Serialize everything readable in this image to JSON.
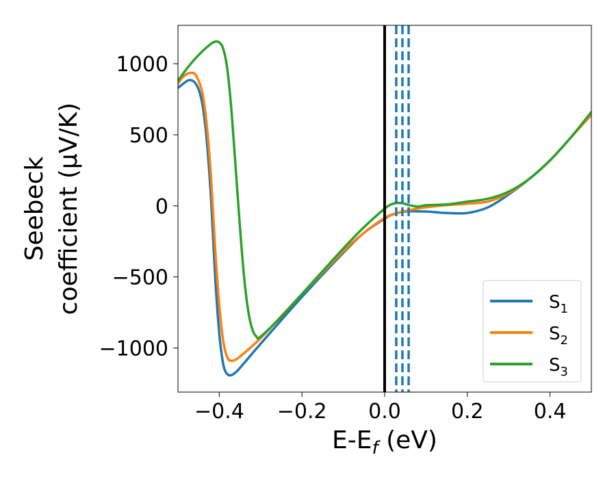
{
  "chart_data": {
    "type": "line",
    "xlabel": "E-E",
    "xlabel_sub": "f",
    "xlabel_unit": " (eV)",
    "ylabel_line1": "Seebeck",
    "ylabel_line2": "coefficient  (μV/K)",
    "xlim": [
      -0.5,
      0.5
    ],
    "ylim": [
      -1310,
      1270
    ],
    "xticks": [
      {
        "value": -0.4,
        "label": "−0.4"
      },
      {
        "value": -0.2,
        "label": "−0.2"
      },
      {
        "value": 0.0,
        "label": "0.0"
      },
      {
        "value": 0.2,
        "label": "0.2"
      },
      {
        "value": 0.4,
        "label": "0.4"
      }
    ],
    "yticks": [
      {
        "value": -1000,
        "label": "−1000"
      },
      {
        "value": -500,
        "label": "−500"
      },
      {
        "value": 0,
        "label": "0"
      },
      {
        "value": 500,
        "label": "500"
      },
      {
        "value": 1000,
        "label": "1000"
      }
    ],
    "grid": false,
    "legend_position": "lower-right",
    "series": [
      {
        "name": "S",
        "sub": "1",
        "color": "#1f77b4",
        "x": [
          -0.5,
          -0.48,
          -0.47,
          -0.46,
          -0.45,
          -0.44,
          -0.43,
          -0.42,
          -0.41,
          -0.4,
          -0.39,
          -0.38,
          -0.37,
          -0.36,
          -0.35,
          -0.3,
          -0.2,
          -0.1,
          -0.05,
          0.0,
          0.02,
          0.05,
          0.1,
          0.15,
          0.2,
          0.25,
          0.3,
          0.35,
          0.4,
          0.45,
          0.5
        ],
        "y": [
          830,
          875,
          885,
          870,
          820,
          700,
          450,
          50,
          -500,
          -900,
          -1120,
          -1185,
          -1190,
          -1170,
          -1140,
          -970,
          -640,
          -330,
          -190,
          -90,
          -60,
          -40,
          -40,
          -50,
          -50,
          -10,
          80,
          190,
          320,
          480,
          650
        ]
      },
      {
        "name": "S",
        "sub": "2",
        "color": "#ff7f0e",
        "x": [
          -0.5,
          -0.49,
          -0.48,
          -0.47,
          -0.46,
          -0.45,
          -0.44,
          -0.43,
          -0.42,
          -0.41,
          -0.4,
          -0.39,
          -0.38,
          -0.37,
          -0.36,
          -0.35,
          -0.3,
          -0.2,
          -0.1,
          -0.05,
          0.0,
          0.03,
          0.06,
          0.1,
          0.15,
          0.2,
          0.25,
          0.3,
          0.35,
          0.4,
          0.45,
          0.5
        ],
        "y": [
          860,
          900,
          925,
          935,
          930,
          880,
          780,
          560,
          200,
          -300,
          -700,
          -960,
          -1070,
          -1090,
          -1080,
          -1060,
          -930,
          -620,
          -320,
          -190,
          -85,
          -50,
          -30,
          -10,
          5,
          15,
          30,
          90,
          190,
          320,
          480,
          640
        ]
      },
      {
        "name": "S",
        "sub": "3",
        "color": "#2ca02c",
        "x": [
          -0.5,
          -0.48,
          -0.46,
          -0.44,
          -0.42,
          -0.41,
          -0.4,
          -0.39,
          -0.38,
          -0.37,
          -0.36,
          -0.35,
          -0.34,
          -0.33,
          -0.32,
          -0.31,
          -0.3,
          -0.25,
          -0.2,
          -0.1,
          -0.05,
          0.0,
          0.02,
          0.04,
          0.06,
          0.08,
          0.1,
          0.15,
          0.2,
          0.25,
          0.3,
          0.35,
          0.4,
          0.45,
          0.5
        ],
        "y": [
          880,
          960,
          1030,
          1090,
          1140,
          1155,
          1150,
          1100,
          950,
          650,
          250,
          -150,
          -500,
          -740,
          -870,
          -920,
          -920,
          -780,
          -620,
          -300,
          -150,
          -20,
          15,
          20,
          5,
          -5,
          5,
          10,
          30,
          50,
          100,
          190,
          320,
          480,
          660
        ]
      }
    ],
    "vlines": [
      {
        "x": 0.0,
        "style": "solid",
        "color": "#000000"
      },
      {
        "x": 0.028,
        "style": "dashed",
        "color": "#1f77b4"
      },
      {
        "x": 0.043,
        "style": "dashed",
        "color": "#1f77b4"
      },
      {
        "x": 0.058,
        "style": "dashed",
        "color": "#1f77b4"
      }
    ]
  }
}
